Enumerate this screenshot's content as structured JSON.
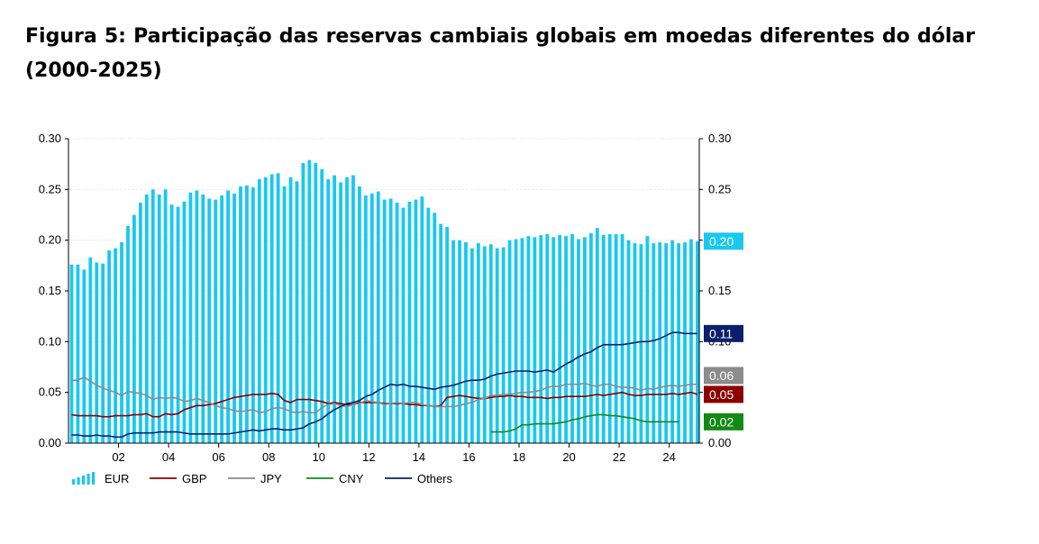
{
  "figure": {
    "title": "Figura 5: Participação das reservas cambiais globais em moedas diferentes do dólar (2000-2025)"
  },
  "colors": {
    "EUR": "#19c8f0",
    "GBP": "#8b0000",
    "JPY": "#8c8c8c",
    "CNY": "#138a13",
    "Others": "#0b1f6b"
  },
  "chart_data": {
    "type": "bar",
    "title": "",
    "xlabel": "",
    "ylabel": "",
    "ylim": [
      0,
      0.3
    ],
    "yticks": [
      0.0,
      0.05,
      0.1,
      0.15,
      0.2,
      0.25,
      0.3
    ],
    "ytick_labels": [
      "0.00",
      "0.05",
      "0.10",
      "0.15",
      "0.20",
      "0.25",
      "0.30"
    ],
    "xlim": [
      2000,
      2025.2
    ],
    "xticks": [
      2002,
      2004,
      2006,
      2008,
      2010,
      2012,
      2014,
      2016,
      2018,
      2020,
      2022,
      2024
    ],
    "xtick_labels": [
      "02",
      "04",
      "06",
      "08",
      "10",
      "12",
      "14",
      "16",
      "18",
      "20",
      "22",
      "24"
    ],
    "grid": true,
    "legend_position": "bottom-left",
    "quarter_starts": [
      2000.0,
      2000.25,
      2000.5,
      2000.75,
      2001.0,
      2001.25,
      2001.5,
      2001.75,
      2002.0,
      2002.25,
      2002.5,
      2002.75,
      2003.0,
      2003.25,
      2003.5,
      2003.75,
      2004.0,
      2004.25,
      2004.5,
      2004.75,
      2005.0,
      2005.25,
      2005.5,
      2005.75,
      2006.0,
      2006.25,
      2006.5,
      2006.75,
      2007.0,
      2007.25,
      2007.5,
      2007.75,
      2008.0,
      2008.25,
      2008.5,
      2008.75,
      2009.0,
      2009.25,
      2009.5,
      2009.75,
      2010.0,
      2010.25,
      2010.5,
      2010.75,
      2011.0,
      2011.25,
      2011.5,
      2011.75,
      2012.0,
      2012.25,
      2012.5,
      2012.75,
      2013.0,
      2013.25,
      2013.5,
      2013.75,
      2014.0,
      2014.25,
      2014.5,
      2014.75,
      2015.0,
      2015.25,
      2015.5,
      2015.75,
      2016.0,
      2016.25,
      2016.5,
      2016.75,
      2017.0,
      2017.25,
      2017.5,
      2017.75,
      2018.0,
      2018.25,
      2018.5,
      2018.75,
      2019.0,
      2019.25,
      2019.5,
      2019.75,
      2020.0,
      2020.25,
      2020.5,
      2020.75,
      2021.0,
      2021.25,
      2021.5,
      2021.75,
      2022.0,
      2022.25,
      2022.5,
      2022.75,
      2023.0,
      2023.25,
      2023.5,
      2023.75,
      2024.0,
      2024.25,
      2024.5,
      2024.75,
      2025.0
    ],
    "series": [
      {
        "name": "EUR",
        "kind": "bar",
        "end_label": "0.20",
        "values": [
          0.176,
          0.176,
          0.171,
          0.183,
          0.178,
          0.177,
          0.19,
          0.192,
          0.198,
          0.214,
          0.225,
          0.237,
          0.245,
          0.25,
          0.245,
          0.25,
          0.235,
          0.233,
          0.238,
          0.247,
          0.249,
          0.245,
          0.241,
          0.24,
          0.244,
          0.249,
          0.246,
          0.253,
          0.254,
          0.252,
          0.26,
          0.262,
          0.265,
          0.266,
          0.253,
          0.262,
          0.258,
          0.276,
          0.279,
          0.276,
          0.27,
          0.26,
          0.264,
          0.257,
          0.262,
          0.264,
          0.253,
          0.244,
          0.246,
          0.248,
          0.24,
          0.241,
          0.237,
          0.232,
          0.238,
          0.24,
          0.243,
          0.232,
          0.227,
          0.216,
          0.213,
          0.2,
          0.2,
          0.198,
          0.192,
          0.197,
          0.194,
          0.196,
          0.192,
          0.193,
          0.2,
          0.201,
          0.202,
          0.204,
          0.203,
          0.205,
          0.206,
          0.203,
          0.205,
          0.204,
          0.206,
          0.201,
          0.203,
          0.207,
          0.212,
          0.205,
          0.206,
          0.206,
          0.206,
          0.2,
          0.197,
          0.196,
          0.204,
          0.197,
          0.198,
          0.197,
          0.2,
          0.197,
          0.198,
          0.201,
          0.199
        ]
      },
      {
        "name": "GBP",
        "kind": "line",
        "end_label": "0.05",
        "values": [
          0.028,
          0.027,
          0.027,
          0.027,
          0.027,
          0.026,
          0.026,
          0.027,
          0.027,
          0.027,
          0.028,
          0.028,
          0.029,
          0.026,
          0.026,
          0.029,
          0.028,
          0.029,
          0.033,
          0.035,
          0.037,
          0.037,
          0.038,
          0.039,
          0.041,
          0.043,
          0.045,
          0.046,
          0.047,
          0.048,
          0.048,
          0.048,
          0.049,
          0.048,
          0.042,
          0.04,
          0.043,
          0.043,
          0.043,
          0.042,
          0.041,
          0.039,
          0.04,
          0.039,
          0.038,
          0.038,
          0.04,
          0.04,
          0.04,
          0.04,
          0.039,
          0.039,
          0.039,
          0.039,
          0.038,
          0.038,
          0.037,
          0.037,
          0.036,
          0.037,
          0.045,
          0.046,
          0.047,
          0.046,
          0.045,
          0.044,
          0.044,
          0.045,
          0.046,
          0.046,
          0.047,
          0.046,
          0.046,
          0.045,
          0.045,
          0.045,
          0.044,
          0.045,
          0.045,
          0.046,
          0.046,
          0.046,
          0.046,
          0.047,
          0.048,
          0.047,
          0.048,
          0.049,
          0.05,
          0.048,
          0.047,
          0.047,
          0.048,
          0.048,
          0.048,
          0.048,
          0.049,
          0.048,
          0.049,
          0.05,
          0.048
        ]
      },
      {
        "name": "JPY",
        "kind": "line",
        "end_label": "0.06",
        "values": [
          0.062,
          0.062,
          0.065,
          0.061,
          0.057,
          0.054,
          0.052,
          0.05,
          0.047,
          0.051,
          0.05,
          0.049,
          0.047,
          0.043,
          0.045,
          0.044,
          0.045,
          0.044,
          0.041,
          0.042,
          0.044,
          0.042,
          0.04,
          0.037,
          0.035,
          0.034,
          0.032,
          0.031,
          0.032,
          0.033,
          0.03,
          0.031,
          0.034,
          0.035,
          0.034,
          0.031,
          0.03,
          0.031,
          0.03,
          0.03,
          0.035,
          0.038,
          0.039,
          0.037,
          0.036,
          0.038,
          0.039,
          0.042,
          0.041,
          0.04,
          0.038,
          0.039,
          0.04,
          0.039,
          0.04,
          0.04,
          0.038,
          0.037,
          0.036,
          0.036,
          0.036,
          0.036,
          0.037,
          0.039,
          0.04,
          0.043,
          0.044,
          0.047,
          0.047,
          0.048,
          0.048,
          0.049,
          0.05,
          0.05,
          0.051,
          0.052,
          0.055,
          0.056,
          0.056,
          0.058,
          0.058,
          0.058,
          0.059,
          0.057,
          0.056,
          0.058,
          0.058,
          0.056,
          0.055,
          0.055,
          0.054,
          0.052,
          0.054,
          0.053,
          0.055,
          0.056,
          0.057,
          0.056,
          0.057,
          0.058,
          0.058
        ]
      },
      {
        "name": "CNY",
        "kind": "line",
        "end_label": "0.02",
        "start": 2016.75,
        "values": [
          0.011,
          0.011,
          0.011,
          0.012,
          0.014,
          0.018,
          0.018,
          0.019,
          0.019,
          0.019,
          0.019,
          0.02,
          0.021,
          0.023,
          0.024,
          0.026,
          0.027,
          0.028,
          0.028,
          0.027,
          0.027,
          0.026,
          0.025,
          0.024,
          0.022,
          0.021,
          0.021,
          0.021,
          0.021,
          0.021,
          0.021
        ]
      },
      {
        "name": "Others",
        "kind": "line",
        "end_label": "0.11",
        "values": [
          0.008,
          0.008,
          0.007,
          0.007,
          0.008,
          0.007,
          0.007,
          0.006,
          0.006,
          0.009,
          0.01,
          0.01,
          0.01,
          0.01,
          0.011,
          0.011,
          0.011,
          0.011,
          0.01,
          0.009,
          0.009,
          0.009,
          0.009,
          0.009,
          0.009,
          0.009,
          0.01,
          0.011,
          0.012,
          0.013,
          0.012,
          0.013,
          0.014,
          0.014,
          0.013,
          0.013,
          0.014,
          0.015,
          0.019,
          0.021,
          0.024,
          0.029,
          0.033,
          0.036,
          0.039,
          0.04,
          0.042,
          0.046,
          0.048,
          0.052,
          0.055,
          0.058,
          0.057,
          0.058,
          0.056,
          0.056,
          0.055,
          0.054,
          0.053,
          0.055,
          0.056,
          0.057,
          0.059,
          0.061,
          0.062,
          0.062,
          0.063,
          0.066,
          0.068,
          0.069,
          0.07,
          0.071,
          0.071,
          0.071,
          0.07,
          0.071,
          0.072,
          0.07,
          0.074,
          0.078,
          0.081,
          0.085,
          0.088,
          0.09,
          0.094,
          0.097,
          0.097,
          0.097,
          0.097,
          0.098,
          0.099,
          0.1,
          0.1,
          0.101,
          0.103,
          0.106,
          0.109,
          0.109,
          0.108,
          0.108,
          0.108
        ]
      }
    ]
  }
}
